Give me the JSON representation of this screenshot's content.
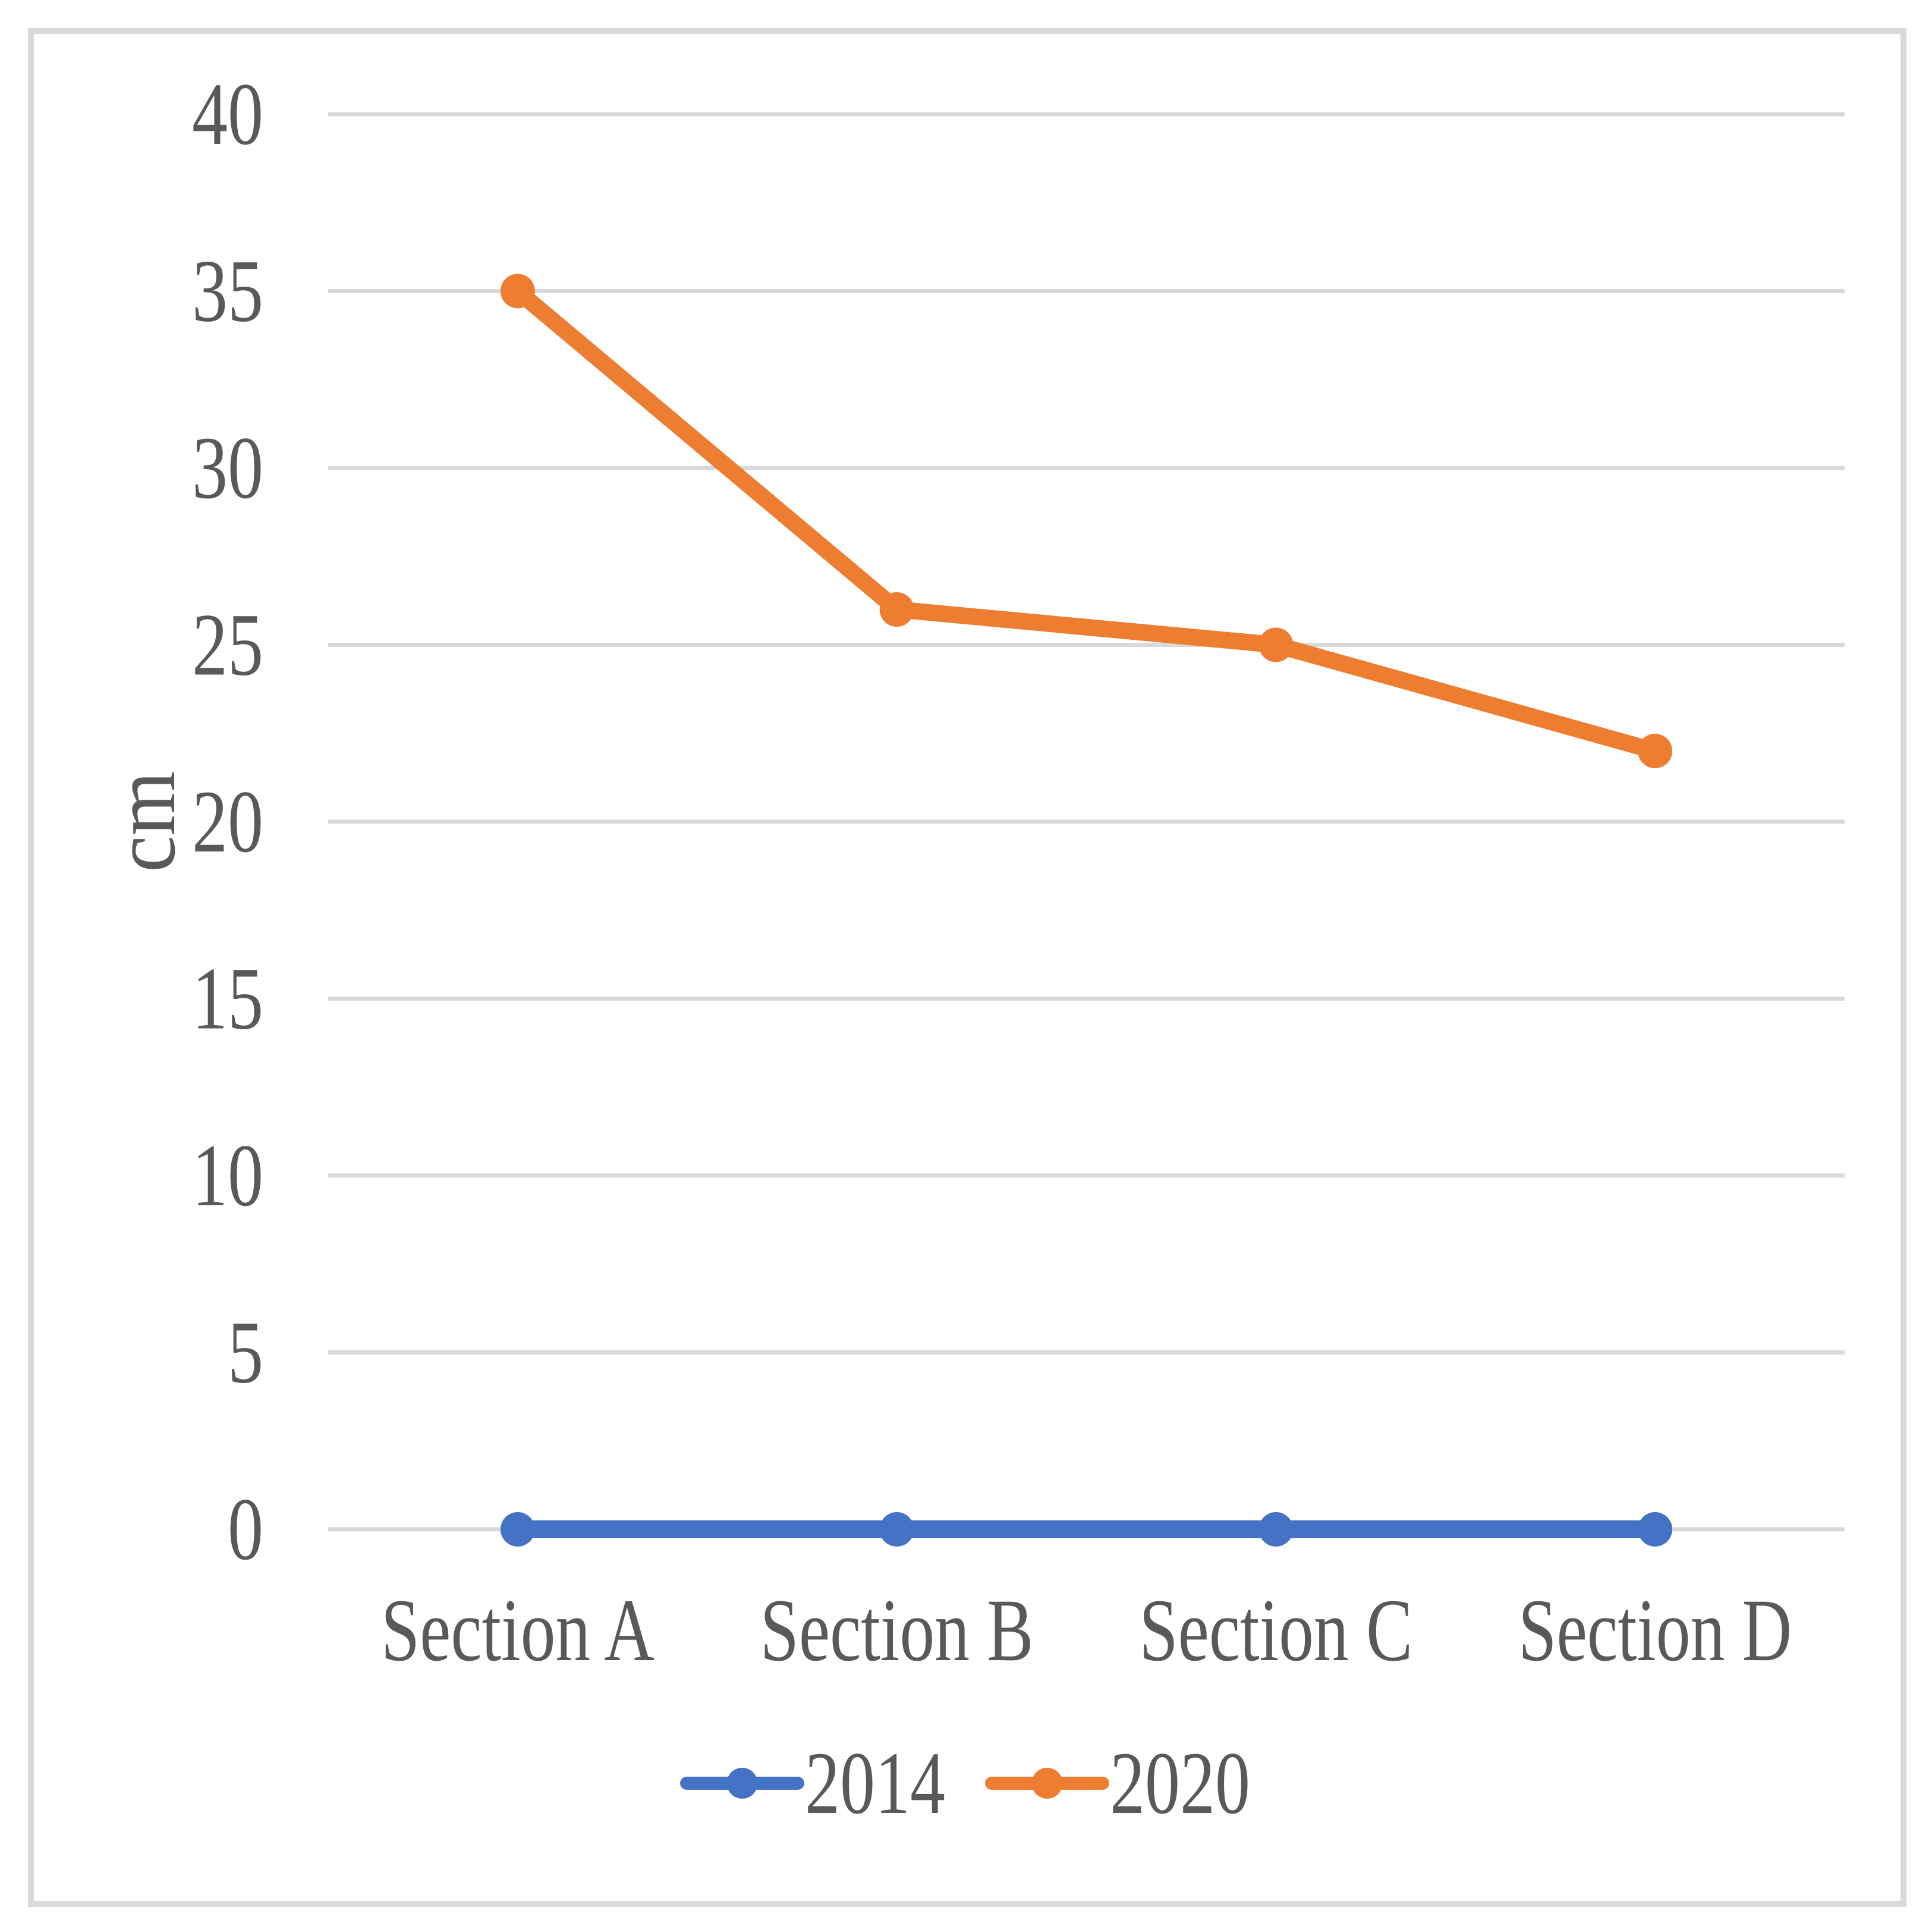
{
  "chart_data": {
    "type": "line",
    "title": "",
    "xlabel": "",
    "ylabel": "cm",
    "categories": [
      "Section A",
      "Section B",
      "Section C",
      "Section D"
    ],
    "series": [
      {
        "name": "2014",
        "color": "#4472C4",
        "values": [
          0,
          0,
          0,
          0
        ]
      },
      {
        "name": "2020",
        "color": "#ED7D31",
        "values": [
          35,
          26,
          25,
          22
        ]
      }
    ],
    "ylim": [
      0,
      40
    ],
    "yticks": [
      0,
      5,
      10,
      15,
      20,
      25,
      30,
      35,
      40
    ],
    "grid": "horizontal-only",
    "legend_position": "bottom",
    "legend_entries": [
      "2014",
      "2020"
    ],
    "colors": {
      "gridline": "#D9D9D9",
      "frame_border": "#D9D9D9",
      "text": "#595959",
      "series_2014": "#4472C4",
      "series_2020": "#ED7D31"
    }
  }
}
